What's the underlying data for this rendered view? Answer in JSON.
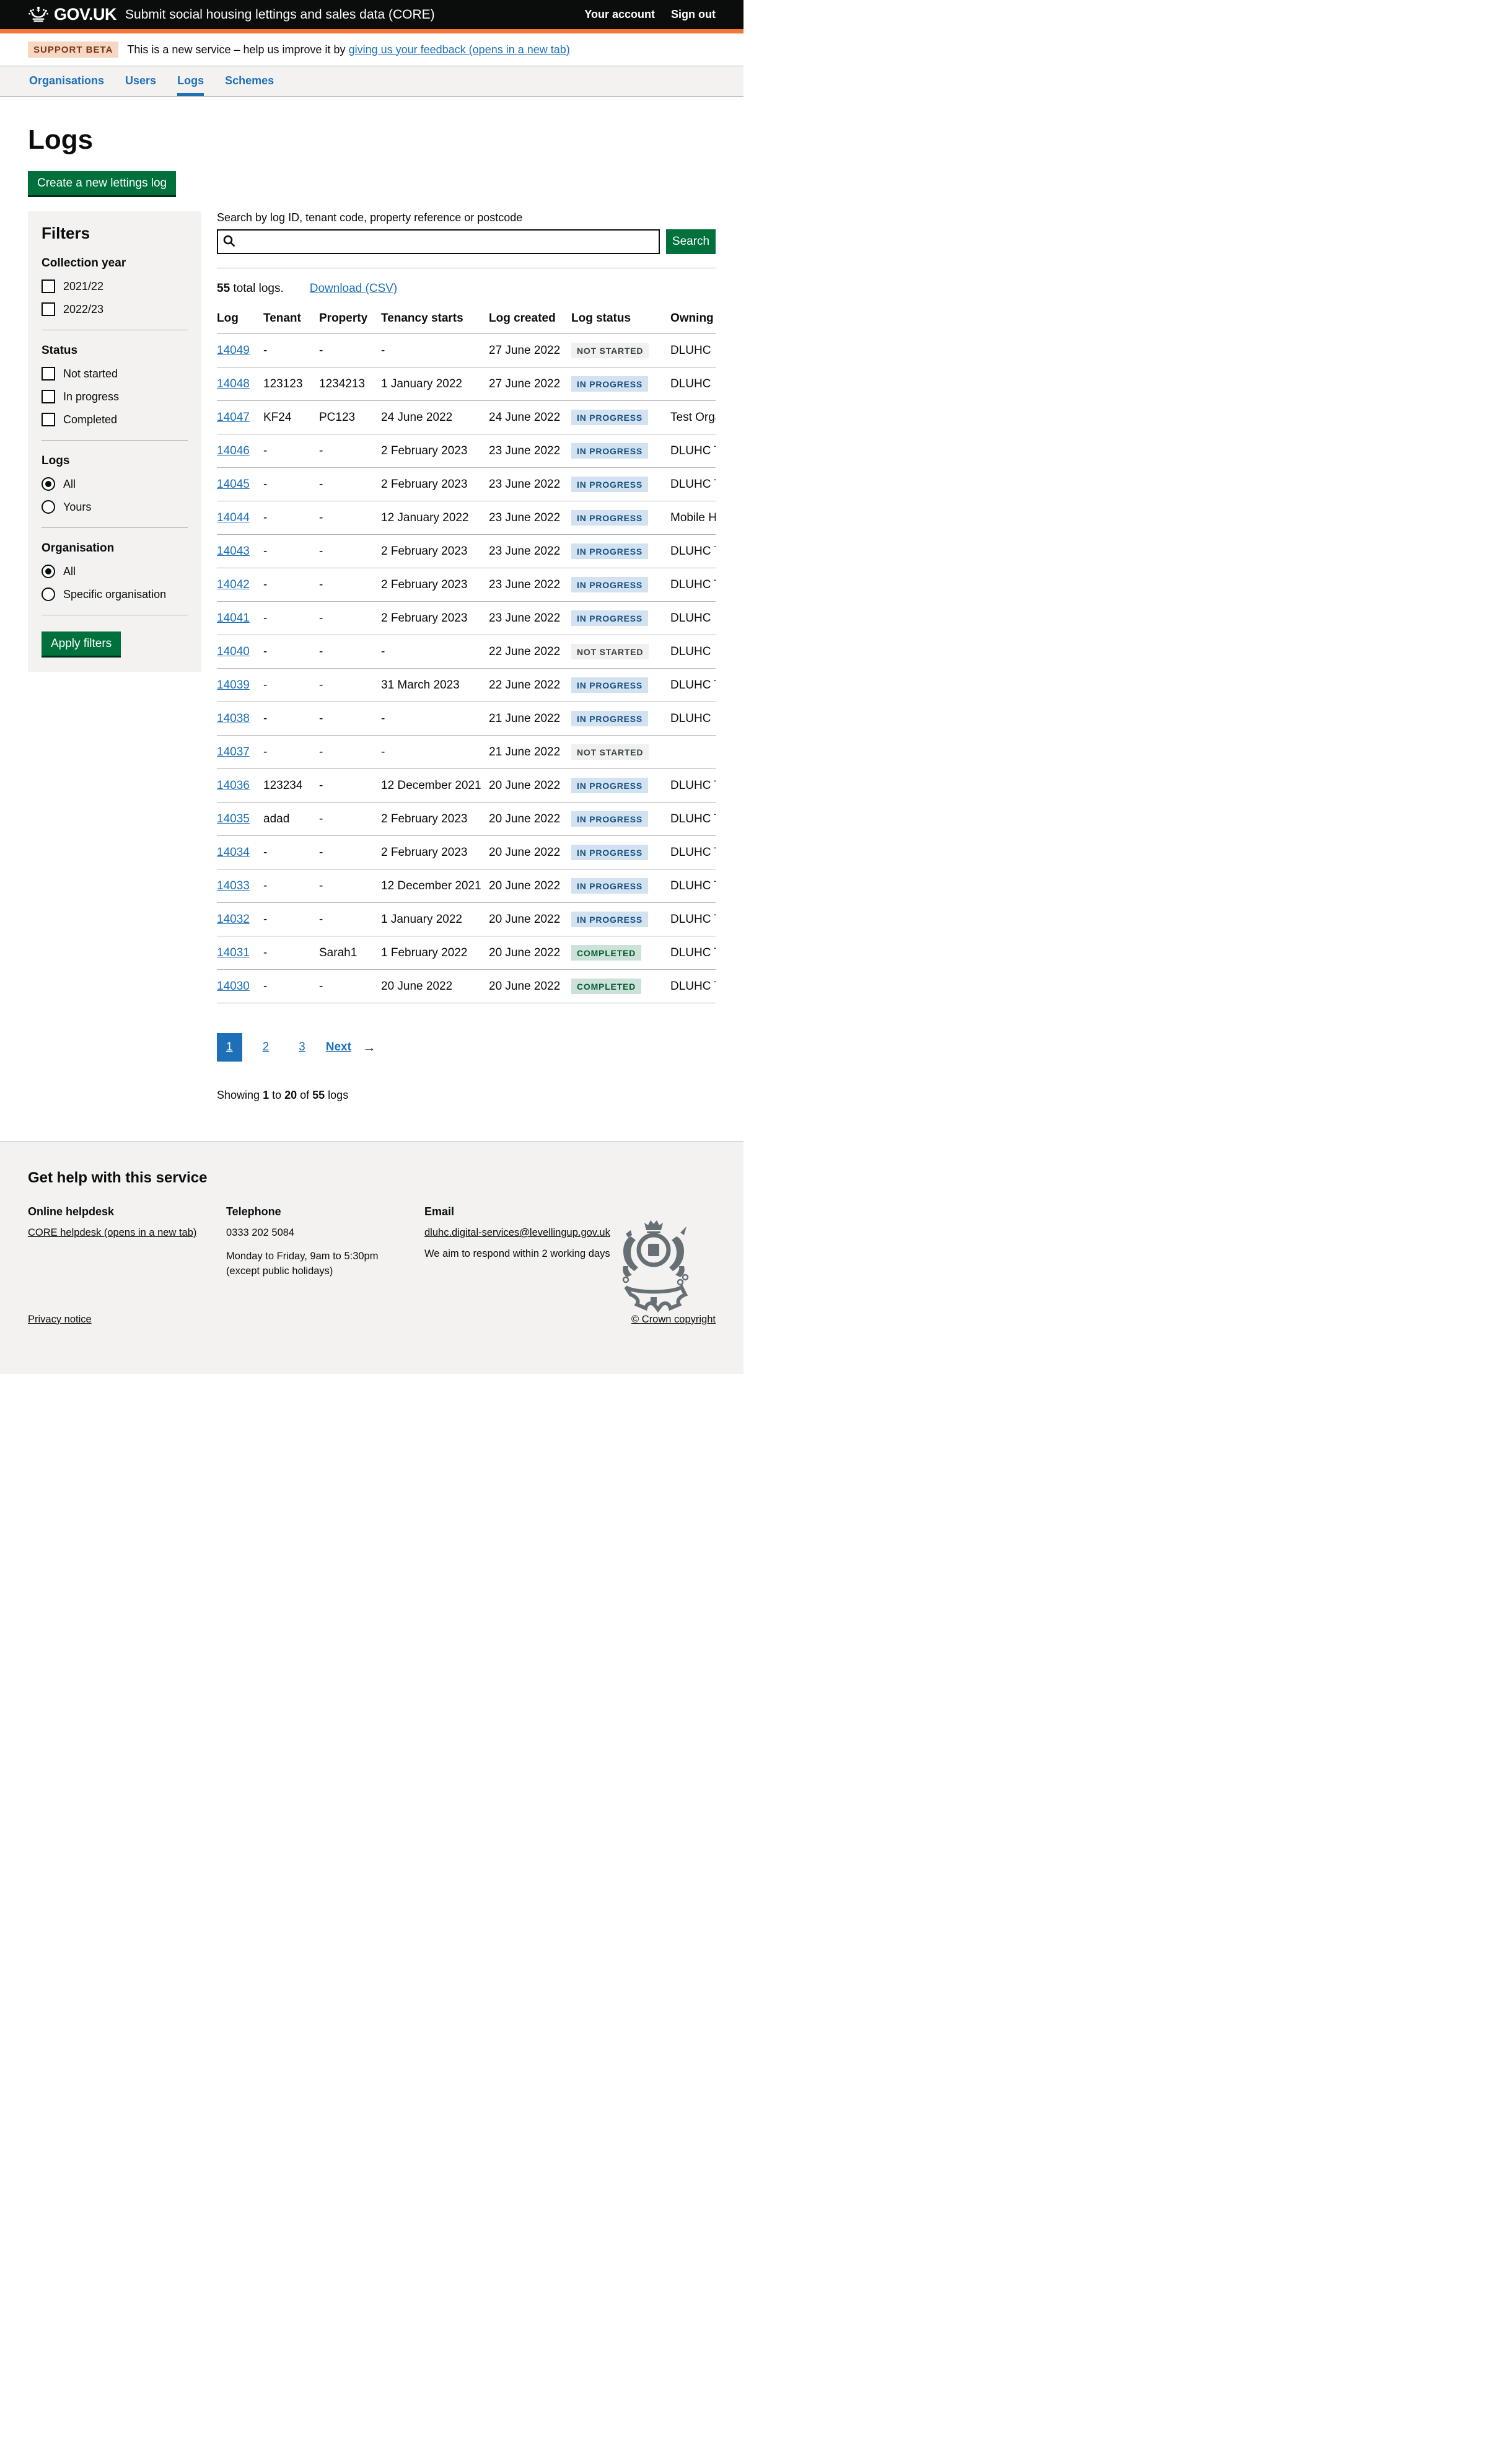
{
  "colors": {
    "accent_blue": "#1d70b8",
    "button_green": "#00703c",
    "header_border_orange": "#f47738",
    "panel_grey": "#f3f2f1"
  },
  "header": {
    "logotype": "GOV.UK",
    "service_name": "Submit social housing lettings and sales data (CORE)",
    "account_link": "Your account",
    "signout_link": "Sign out"
  },
  "beta_banner": {
    "tag": "SUPPORT BETA",
    "text_before": "This is a new service – help us improve it by ",
    "link_text": "giving us your feedback (opens in a new tab)"
  },
  "nav": {
    "items": [
      {
        "label": "Organisations",
        "active": ""
      },
      {
        "label": "Users",
        "active": ""
      },
      {
        "label": "Logs",
        "active": "active"
      },
      {
        "label": "Schemes",
        "active": ""
      }
    ]
  },
  "page": {
    "title": "Logs",
    "create_button": "Create a new lettings log"
  },
  "filters": {
    "title": "Filters",
    "collection_year": {
      "label": "Collection year",
      "options": [
        {
          "label": "2021/22"
        },
        {
          "label": "2022/23"
        }
      ]
    },
    "status": {
      "label": "Status",
      "options": [
        {
          "label": "Not started"
        },
        {
          "label": "In progress"
        },
        {
          "label": "Completed"
        }
      ]
    },
    "logs": {
      "label": "Logs",
      "options": [
        {
          "label": "All",
          "state": "selected"
        },
        {
          "label": "Yours",
          "state": ""
        }
      ]
    },
    "organisation": {
      "label": "Organisation",
      "options": [
        {
          "label": "All",
          "state": "selected"
        },
        {
          "label": "Specific organisation",
          "state": ""
        }
      ]
    },
    "apply_button": "Apply filters"
  },
  "search": {
    "label": "Search by log ID, tenant code, property reference or postcode",
    "value": "",
    "button": "Search"
  },
  "results": {
    "total_count": "55",
    "total_suffix": " total logs.",
    "download_link": "Download (CSV)"
  },
  "table": {
    "columns": [
      "Log",
      "Tenant",
      "Property",
      "Tenancy starts",
      "Log created",
      "Log status",
      "Owning or"
    ],
    "rows": [
      {
        "log": "14049",
        "tenant": "-",
        "property": "-",
        "start": "-",
        "created": "27 June 2022",
        "status": "NOT STARTED",
        "status_class": "grey",
        "owning": "DLUHC"
      },
      {
        "log": "14048",
        "tenant": "123123",
        "property": "1234213",
        "start": "1 January 2022",
        "created": "27 June 2022",
        "status": "IN PROGRESS",
        "status_class": "blue",
        "owning": "DLUHC"
      },
      {
        "log": "14047",
        "tenant": "KF24",
        "property": "PC123",
        "start": "24 June 2022",
        "created": "24 June 2022",
        "status": "IN PROGRESS",
        "status_class": "blue",
        "owning": "Test Organ"
      },
      {
        "log": "14046",
        "tenant": "-",
        "property": "-",
        "start": "2 February 2023",
        "created": "23 June 2022",
        "status": "IN PROGRESS",
        "status_class": "blue",
        "owning": "DLUHC Tes"
      },
      {
        "log": "14045",
        "tenant": "-",
        "property": "-",
        "start": "2 February 2023",
        "created": "23 June 2022",
        "status": "IN PROGRESS",
        "status_class": "blue",
        "owning": "DLUHC Tes"
      },
      {
        "log": "14044",
        "tenant": "-",
        "property": "-",
        "start": "12 January 2022",
        "created": "23 June 2022",
        "status": "IN PROGRESS",
        "status_class": "blue",
        "owning": "Mobile Hou"
      },
      {
        "log": "14043",
        "tenant": "-",
        "property": "-",
        "start": "2 February 2023",
        "created": "23 June 2022",
        "status": "IN PROGRESS",
        "status_class": "blue",
        "owning": "DLUHC Tes"
      },
      {
        "log": "14042",
        "tenant": "-",
        "property": "-",
        "start": "2 February 2023",
        "created": "23 June 2022",
        "status": "IN PROGRESS",
        "status_class": "blue",
        "owning": "DLUHC Tes"
      },
      {
        "log": "14041",
        "tenant": "-",
        "property": "-",
        "start": "2 February 2023",
        "created": "23 June 2022",
        "status": "IN PROGRESS",
        "status_class": "blue",
        "owning": "DLUHC"
      },
      {
        "log": "14040",
        "tenant": "-",
        "property": "-",
        "start": "-",
        "created": "22 June 2022",
        "status": "NOT STARTED",
        "status_class": "grey",
        "owning": "DLUHC"
      },
      {
        "log": "14039",
        "tenant": "-",
        "property": "-",
        "start": "31 March 2023",
        "created": "22 June 2022",
        "status": "IN PROGRESS",
        "status_class": "blue",
        "owning": "DLUHC Tes"
      },
      {
        "log": "14038",
        "tenant": "-",
        "property": "-",
        "start": "-",
        "created": "21 June 2022",
        "status": "IN PROGRESS",
        "status_class": "blue",
        "owning": "DLUHC"
      },
      {
        "log": "14037",
        "tenant": "-",
        "property": "-",
        "start": "-",
        "created": "21 June 2022",
        "status": "NOT STARTED",
        "status_class": "grey",
        "owning": ""
      },
      {
        "log": "14036",
        "tenant": "123234",
        "property": "-",
        "start": "12 December 2021",
        "created": "20 June 2022",
        "status": "IN PROGRESS",
        "status_class": "blue",
        "owning": "DLUHC Tes"
      },
      {
        "log": "14035",
        "tenant": "adad",
        "property": "-",
        "start": "2 February 2023",
        "created": "20 June 2022",
        "status": "IN PROGRESS",
        "status_class": "blue",
        "owning": "DLUHC Tes"
      },
      {
        "log": "14034",
        "tenant": "-",
        "property": "-",
        "start": "2 February 2023",
        "created": "20 June 2022",
        "status": "IN PROGRESS",
        "status_class": "blue",
        "owning": "DLUHC Tes"
      },
      {
        "log": "14033",
        "tenant": "-",
        "property": "-",
        "start": "12 December 2021",
        "created": "20 June 2022",
        "status": "IN PROGRESS",
        "status_class": "blue",
        "owning": "DLUHC Tes"
      },
      {
        "log": "14032",
        "tenant": "-",
        "property": "-",
        "start": "1 January 2022",
        "created": "20 June 2022",
        "status": "IN PROGRESS",
        "status_class": "blue",
        "owning": "DLUHC Tes"
      },
      {
        "log": "14031",
        "tenant": "-",
        "property": "Sarah1",
        "start": "1 February 2022",
        "created": "20 June 2022",
        "status": "COMPLETED",
        "status_class": "green",
        "owning": "DLUHC Tes"
      },
      {
        "log": "14030",
        "tenant": "-",
        "property": "-",
        "start": "20 June 2022",
        "created": "20 June 2022",
        "status": "COMPLETED",
        "status_class": "green",
        "owning": "DLUHC Tes"
      }
    ]
  },
  "pagination": {
    "page1": "1",
    "page2": "2",
    "page3": "3",
    "next": "Next",
    "arrow": "→",
    "showing_prefix": "Showing ",
    "from": "1",
    "to_word": " to ",
    "to": "20",
    "of_word": " of ",
    "of": "55",
    "suffix": " logs"
  },
  "footer": {
    "heading": "Get help with this service",
    "helpdesk": {
      "title": "Online helpdesk",
      "link": "CORE helpdesk (opens in a new tab)"
    },
    "telephone": {
      "title": "Telephone",
      "number": "0333 202 5084",
      "hours": "Monday to Friday, 9am to 5:30pm",
      "note": "(except public holidays)"
    },
    "email": {
      "title": "Email",
      "address": "dluhc.digital-services@levellingup.gov.uk",
      "note": "We aim to respond within 2 working days"
    },
    "privacy_link": "Privacy notice",
    "copyright": "© Crown copyright"
  }
}
